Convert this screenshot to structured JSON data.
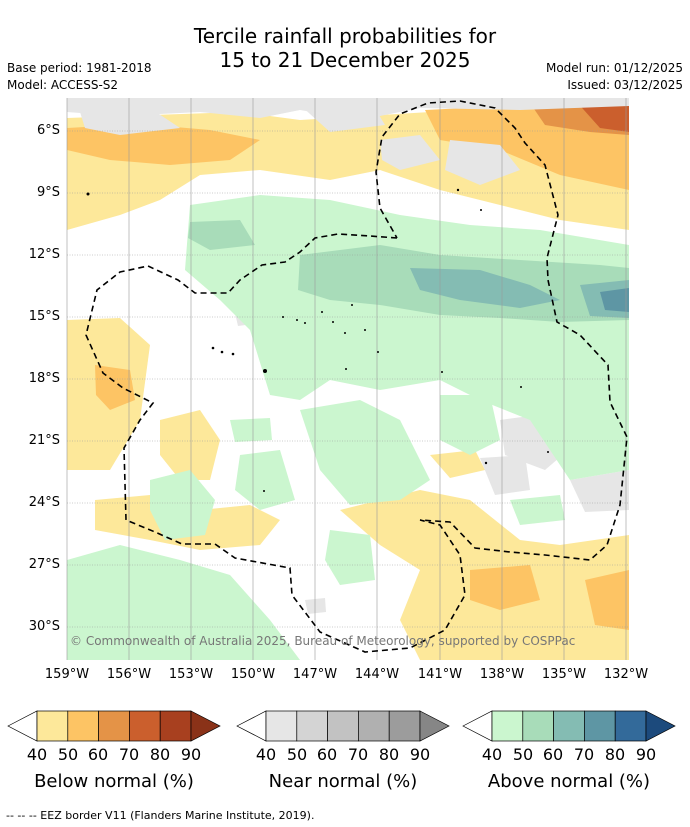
{
  "title_line1": "Tercile rainfall probabilities for",
  "title_line2": "15 to 21 December 2025",
  "base_period": "Base period: 1981-2018",
  "model": "Model: ACCESS-S2",
  "model_run": "Model run: 01/12/2025",
  "issued": "Issued: 03/12/2025",
  "lat_labels": [
    "6°S",
    "9°S",
    "12°S",
    "15°S",
    "18°S",
    "21°S",
    "24°S",
    "27°S",
    "30°S"
  ],
  "lon_labels": [
    "159°W",
    "156°W",
    "153°W",
    "150°W",
    "147°W",
    "144°W",
    "141°W",
    "138°W",
    "135°W",
    "132°W"
  ],
  "credit": "© Commonwealth of Australia 2025, Bureau of Meteorology, supported by COSPPac",
  "colorbars": {
    "below": {
      "title": "Below normal (%)",
      "ticks": [
        "40",
        "50",
        "60",
        "70",
        "80",
        "90"
      ],
      "colors": [
        "#fde89a",
        "#fdc464",
        "#e49347",
        "#cb5f2d",
        "#a8401f",
        "#8a3218"
      ]
    },
    "near": {
      "title": "Near normal (%)",
      "ticks": [
        "40",
        "50",
        "60",
        "70",
        "80",
        "90"
      ],
      "colors": [
        "#e6e6e6",
        "#d4d4d4",
        "#c2c2c2",
        "#b0b0b0",
        "#9c9c9c",
        "#868686"
      ]
    },
    "above": {
      "title": "Above normal (%)",
      "ticks": [
        "40",
        "50",
        "60",
        "70",
        "80",
        "90"
      ],
      "colors": [
        "#cbf6cf",
        "#a8dcb9",
        "#84bcb3",
        "#5e96a4",
        "#336a9a",
        "#1c4a7c"
      ]
    }
  },
  "footer": "--  --  -- EEZ border V11 (Flanders Marine Institute, 2019)."
}
